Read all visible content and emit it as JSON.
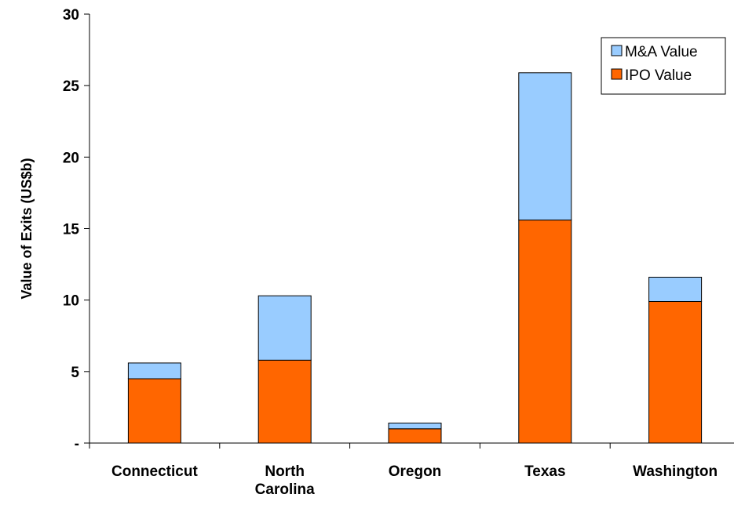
{
  "chart_data": {
    "type": "bar",
    "stacked": true,
    "title": "",
    "xlabel": "",
    "ylabel": "Value of Exits (US$b)",
    "ylim": [
      0,
      30
    ],
    "yticks": [
      0,
      5,
      10,
      15,
      20,
      25,
      30
    ],
    "ytick_labels": [
      "-",
      "5",
      "10",
      "15",
      "20",
      "25",
      "30"
    ],
    "categories": [
      [
        "Connecticut"
      ],
      [
        "North",
        "Carolina"
      ],
      [
        "Oregon"
      ],
      [
        "Texas"
      ],
      [
        "Washington"
      ]
    ],
    "series": [
      {
        "name": "IPO Value",
        "color": "#ff6600",
        "values": [
          4.5,
          5.8,
          1.0,
          15.6,
          9.9
        ]
      },
      {
        "name": "M&A Value",
        "color": "#99ccff",
        "values": [
          1.1,
          4.5,
          0.4,
          10.3,
          1.7
        ]
      }
    ],
    "legend": {
      "position": "top-right",
      "order": [
        "M&A Value",
        "IPO Value"
      ]
    },
    "grid": false,
    "bar_outline_color": "#000000"
  }
}
